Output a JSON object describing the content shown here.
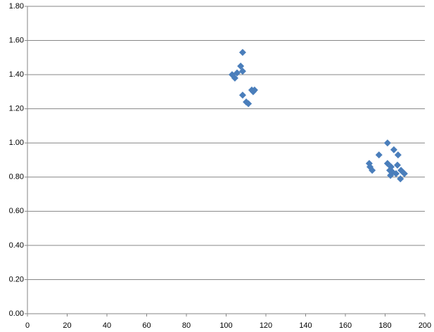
{
  "chart_data": {
    "type": "scatter",
    "x": [
      103.0,
      104.4,
      105.5,
      107.3,
      108.3,
      108.3,
      108.3,
      110.1,
      111.2,
      112.9,
      114.3,
      113.6,
      172.0,
      172.4,
      173.5,
      176.9,
      181.2,
      181.2,
      183.0,
      182.3,
      182.7,
      184.4,
      183.7,
      185.5,
      186.5,
      186.2,
      188.0,
      187.7,
      189.7
    ],
    "values": [
      1.4,
      1.38,
      1.41,
      1.45,
      1.53,
      1.42,
      1.28,
      1.24,
      1.23,
      1.31,
      1.31,
      1.3,
      0.88,
      0.86,
      0.84,
      0.93,
      1.0,
      0.88,
      0.86,
      0.84,
      0.81,
      0.96,
      0.83,
      0.82,
      0.93,
      0.87,
      0.84,
      0.79,
      0.82
    ],
    "color": "#4a7ebb",
    "xlim": [
      0,
      200
    ],
    "xticks": [
      0,
      20,
      40,
      60,
      80,
      100,
      120,
      140,
      160,
      180,
      200
    ],
    "ylim": [
      0,
      1.8
    ],
    "yticks": [
      {
        "value": 0,
        "label": "0.00"
      },
      {
        "value": 0.2,
        "label": "0.20"
      },
      {
        "value": 0.4,
        "label": "0.40"
      },
      {
        "value": 0.6,
        "label": "0.60"
      },
      {
        "value": 0.8,
        "label": "0.80"
      },
      {
        "value": 1.0,
        "label": "1.00"
      },
      {
        "value": 1.2,
        "label": "1.20"
      },
      {
        "value": 1.4,
        "label": "1.40"
      },
      {
        "value": 1.6,
        "label": "1.60"
      },
      {
        "value": 1.8,
        "label": "1.80"
      }
    ],
    "grid": true
  }
}
